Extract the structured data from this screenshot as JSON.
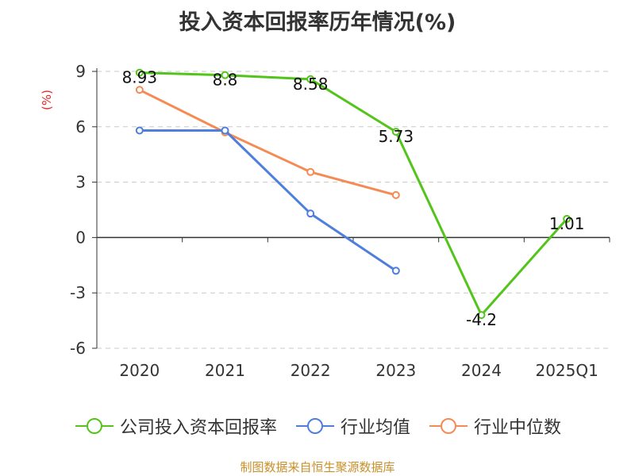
{
  "chart_data": {
    "type": "line",
    "title": "投入资本回报率历年情况(%)",
    "ylabel": "(%)",
    "xlabel": "",
    "categories": [
      "2020",
      "2021",
      "2022",
      "2023",
      "2024",
      "2025Q1"
    ],
    "ylim": [
      -6,
      9
    ],
    "yticks": [
      9,
      6,
      3,
      0,
      -3,
      -6
    ],
    "grid": true,
    "legend_position": "bottom",
    "series": [
      {
        "name": "公司投入资本回报率",
        "color": "#52c41a",
        "values": [
          8.93,
          8.8,
          8.58,
          5.73,
          -4.2,
          1.01
        ],
        "data_labels": [
          "8.93",
          "8.8",
          "8.58",
          "5.73",
          "-4.2",
          "1.01"
        ]
      },
      {
        "name": "行业均值",
        "color": "#4e7fdc",
        "values": [
          5.8,
          5.8,
          1.3,
          -1.8,
          null,
          null
        ]
      },
      {
        "name": "行业中位数",
        "color": "#f58b54",
        "values": [
          8.0,
          5.7,
          3.55,
          2.3,
          null,
          null
        ]
      }
    ]
  },
  "source": "制图数据来自恒生聚源数据库"
}
